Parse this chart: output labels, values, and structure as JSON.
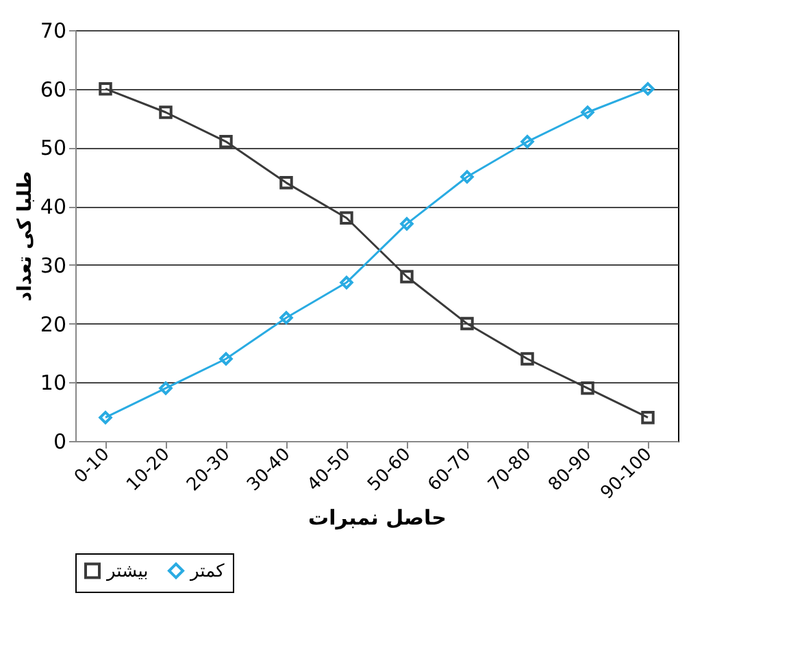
{
  "chart_data": {
    "type": "line",
    "xlabel": "حاصل نمبرات",
    "ylabel": "طلبا کی تعداد",
    "categories": [
      "0-10",
      "10-20",
      "20-30",
      "30-40",
      "40-50",
      "50-60",
      "60-70",
      "70-80",
      "80-90",
      "90-100"
    ],
    "series": [
      {
        "name": "بیشتر",
        "color": "#3a3a3a",
        "marker": "square",
        "values": [
          60,
          56,
          51,
          44,
          38,
          28,
          20,
          14,
          9,
          4
        ]
      },
      {
        "name": "کمتر",
        "color": "#29abe2",
        "marker": "diamond",
        "values": [
          4,
          9,
          14,
          21,
          27,
          37,
          45,
          51,
          56,
          60
        ]
      }
    ],
    "ylim": [
      0,
      70
    ],
    "yticks": [
      0,
      10,
      20,
      30,
      40,
      50,
      60,
      70
    ],
    "grid": "y",
    "legend": "bottom",
    "line_style": "solid"
  }
}
